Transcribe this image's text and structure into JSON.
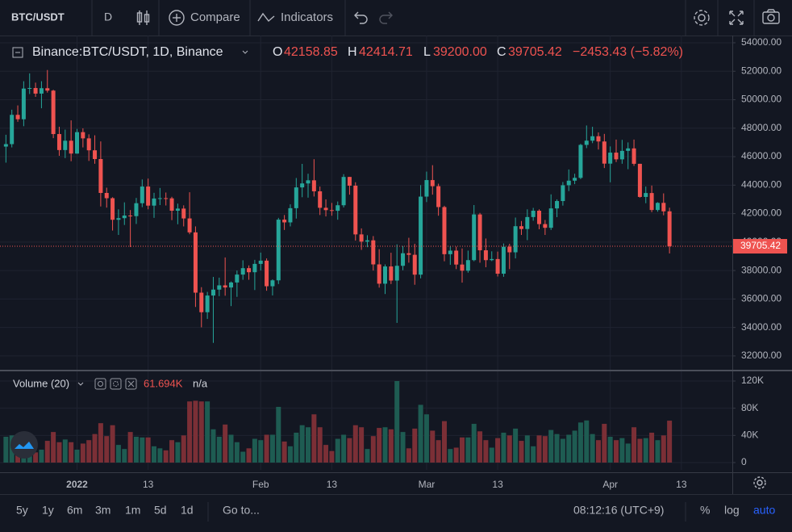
{
  "toolbar": {
    "symbol": "BTC/USDT",
    "interval": "D",
    "compare": "Compare",
    "indicators": "Indicators"
  },
  "chart_data": {
    "type": "candlestick",
    "title": "Binance:BTC/USDT, 1D, Binance",
    "ohlc_letters": {
      "open": "O",
      "high": "H",
      "low": "L",
      "close": "C"
    },
    "ohlc_labels": {
      "open": "42158.85",
      "high": "42414.71",
      "low": "39200.00",
      "close": "39705.42"
    },
    "change": "−2453.43 (−5.82%)",
    "up_color": "#26a69a",
    "down_color": "#ef5350",
    "grid": true,
    "last_price_line": true,
    "open": [
      46707,
      46880,
      48937,
      48628,
      50784,
      50823,
      50429,
      50809,
      50640,
      47588,
      46464,
      47120,
      46216,
      47722,
      47286,
      46446,
      45833,
      43451,
      43082,
      41566,
      41679,
      41864,
      41822,
      42729,
      43902,
      42560,
      43059,
      43084,
      43071,
      42201,
      42352,
      41660,
      40680,
      36445,
      35071,
      36244,
      36660,
      36958,
      36809,
      37160,
      37716,
      38166,
      37881,
      38466,
      38694,
      36896,
      37311,
      41574,
      41382,
      42380,
      43840,
      44118,
      44338,
      43565,
      42407,
      42244,
      42197,
      42586,
      44575,
      43961,
      40538,
      40030,
      40122,
      38431,
      37075,
      38286,
      37296,
      38332,
      39214,
      39105,
      37710,
      43193,
      44354,
      43925,
      42458,
      39148,
      39398,
      38420,
      37988,
      38730,
      41941,
      39422,
      38730,
      38807,
      37777,
      39671,
      39280,
      41114,
      40917,
      41757,
      42201,
      41262,
      41002,
      42364,
      42882,
      43991,
      44313,
      44511,
      46827,
      47122,
      47434,
      47067,
      45510,
      46283,
      45811,
      46407,
      46580,
      45497,
      43170,
      43444,
      42252,
      42753,
      42158.85
    ],
    "high": [
      47539,
      49300,
      49600,
      51300,
      51850,
      51200,
      51300,
      52088,
      50700,
      48100,
      47900,
      48550,
      47950,
      47990,
      47570,
      47500,
      47070,
      43820,
      43150,
      42300,
      42790,
      42250,
      43100,
      44400,
      44460,
      43460,
      43800,
      43480,
      43180,
      42700,
      42580,
      43500,
      41100,
      36830,
      36500,
      37550,
      37500,
      38919,
      37230,
      38000,
      38720,
      38360,
      38750,
      39260,
      38850,
      37380,
      41700,
      41900,
      42650,
      44500,
      45492,
      44800,
      45821,
      43900,
      43000,
      42750,
      42850,
      44770,
      44580,
      44200,
      40960,
      40480,
      40420,
      39500,
      38430,
      39250,
      39840,
      39720,
      40300,
      39880,
      44000,
      44950,
      45400,
      44100,
      42550,
      39700,
      39680,
      39550,
      39400,
      42600,
      42050,
      40250,
      39350,
      39330,
      39900,
      39880,
      41720,
      41480,
      42300,
      42400,
      42300,
      41550,
      43350,
      43000,
      44220,
      45100,
      44800,
      46900,
      48190,
      48100,
      47700,
      47600,
      46720,
      47200,
      47180,
      47000,
      47200,
      45500,
      43900,
      43970,
      42800,
      43420,
      42414.71
    ],
    "low": [
      45579,
      46650,
      48450,
      48140,
      50400,
      50200,
      49400,
      50500,
      47300,
      46060,
      45900,
      45680,
      46200,
      46650,
      45700,
      45500,
      42500,
      42420,
      40810,
      40500,
      41200,
      39650,
      41270,
      42450,
      42300,
      41700,
      42600,
      42570,
      41540,
      41250,
      41100,
      40550,
      35440,
      34010,
      34600,
      32917,
      36200,
      36230,
      35500,
      36150,
      37350,
      37350,
      36630,
      38000,
      36580,
      36250,
      37050,
      40850,
      41100,
      41650,
      43150,
      43120,
      43200,
      41900,
      41800,
      41850,
      41570,
      42430,
      43330,
      40100,
      39450,
      39640,
      38000,
      36800,
      36350,
      37050,
      34322,
      38020,
      38550,
      37000,
      37450,
      42810,
      43330,
      41850,
      38650,
      38400,
      38100,
      37150,
      37850,
      38650,
      38550,
      38230,
      38660,
      37580,
      37560,
      38100,
      38850,
      40500,
      40130,
      41500,
      40900,
      40500,
      40850,
      41750,
      42560,
      43580,
      44070,
      44420,
      46600,
      46950,
      46500,
      45200,
      44200,
      45620,
      45500,
      45120,
      45350,
      43120,
      42730,
      42100,
      42130,
      41880,
      39200
    ],
    "close": [
      46880,
      48937,
      48628,
      50784,
      50823,
      50429,
      50809,
      50640,
      47588,
      46464,
      47120,
      46216,
      47722,
      47286,
      46446,
      45833,
      43451,
      43082,
      41566,
      41679,
      41864,
      41822,
      42729,
      43902,
      42560,
      43059,
      43084,
      43071,
      42201,
      42352,
      41660,
      40680,
      36445,
      35071,
      36244,
      36660,
      36958,
      36809,
      37160,
      37716,
      38166,
      37881,
      38466,
      38694,
      36896,
      37311,
      41574,
      41382,
      42380,
      43840,
      44118,
      44338,
      43565,
      42407,
      42244,
      42197,
      42586,
      44575,
      43961,
      40538,
      40030,
      40122,
      38431,
      37075,
      38286,
      37296,
      38332,
      39214,
      39105,
      37710,
      43193,
      44354,
      43925,
      42458,
      39148,
      39398,
      38420,
      37988,
      38730,
      41941,
      39422,
      38730,
      38807,
      37777,
      39671,
      39280,
      41114,
      40917,
      41757,
      42201,
      41262,
      41002,
      42364,
      42882,
      43991,
      44313,
      44511,
      46827,
      47122,
      47434,
      47067,
      45510,
      46283,
      45811,
      46407,
      46580,
      45497,
      43170,
      43444,
      42252,
      42753,
      42158.85,
      39705.42
    ],
    "xlim": [
      -1,
      122.6
    ],
    "xticks": [
      {
        "value": 12,
        "label": "2022"
      },
      {
        "value": 24,
        "label": "13"
      },
      {
        "value": 43,
        "label": "Feb"
      },
      {
        "value": 55,
        "label": "13"
      },
      {
        "value": 71,
        "label": "Mar"
      },
      {
        "value": 83,
        "label": "13"
      },
      {
        "value": 102,
        "label": "Apr"
      },
      {
        "value": 114,
        "label": "13"
      }
    ],
    "ylim": [
      31030,
      54510
    ],
    "yticks": [
      {
        "value": 32000,
        "label": "32000.00"
      },
      {
        "value": 34000,
        "label": "34000.00"
      },
      {
        "value": 36000,
        "label": "36000.00"
      },
      {
        "value": 38000,
        "label": "38000.00"
      },
      {
        "value": 40000,
        "label": "40000.00"
      },
      {
        "value": 42000,
        "label": "42000.00"
      },
      {
        "value": 44000,
        "label": "44000.00"
      },
      {
        "value": 46000,
        "label": "46000.00"
      },
      {
        "value": 48000,
        "label": "48000.00"
      },
      {
        "value": 50000,
        "label": "50000.00"
      },
      {
        "value": 52000,
        "label": "52000.00"
      },
      {
        "value": 54000,
        "label": "54000.00"
      }
    ],
    "volume": {
      "name": "Volume (20)",
      "extra": "n/a",
      "up_color": "#1e5c52",
      "down_color": "#7b2f36",
      "values": [
        38000,
        40000,
        32000,
        41000,
        25000,
        15000,
        19000,
        32000,
        45000,
        30000,
        34000,
        30000,
        19000,
        28000,
        33000,
        42000,
        58000,
        39000,
        55000,
        26000,
        20000,
        45000,
        38000,
        37000,
        37000,
        24000,
        21000,
        18000,
        33000,
        30000,
        40000,
        90000,
        91000,
        90000,
        90000,
        49000,
        38000,
        56000,
        41000,
        30000,
        16000,
        21000,
        35000,
        33000,
        41000,
        41000,
        82000,
        31000,
        24000,
        44000,
        55000,
        52000,
        71000,
        52000,
        26000,
        17000,
        35000,
        41000,
        36000,
        55000,
        52000,
        20000,
        39000,
        51000,
        52000,
        49000,
        120000,
        45000,
        21000,
        50000,
        85000,
        71000,
        47000,
        33000,
        61000,
        20000,
        22000,
        37000,
        37000,
        57000,
        46000,
        33000,
        22000,
        36000,
        44000,
        40000,
        50000,
        32000,
        40000,
        24000,
        40000,
        39000,
        48000,
        42000,
        35000,
        41000,
        47000,
        59000,
        62000,
        42000,
        33000,
        57000,
        38000,
        33000,
        36000,
        28000,
        52000,
        35000,
        36000,
        44000,
        33000,
        40000,
        61694
      ],
      "value_labels": [
        null,
        null,
        null,
        null,
        null,
        null,
        null,
        null,
        null,
        null,
        null,
        null,
        null,
        null,
        null,
        null,
        null,
        null,
        null,
        null,
        null,
        null,
        null,
        null,
        null,
        null,
        null,
        null,
        null,
        null,
        null,
        null,
        null,
        null,
        null,
        null,
        null,
        null,
        null,
        null,
        null,
        null,
        null,
        null,
        null,
        null,
        null,
        null,
        null,
        null,
        null,
        null,
        null,
        null,
        null,
        null,
        null,
        null,
        null,
        null,
        null,
        null,
        null,
        null,
        null,
        null,
        null,
        null,
        null,
        null,
        null,
        null,
        null,
        null,
        null,
        null,
        null,
        null,
        null,
        null,
        null,
        null,
        null,
        null,
        null,
        null,
        null,
        null,
        null,
        null,
        null,
        null,
        null,
        null,
        null,
        null,
        null,
        null,
        null,
        null,
        null,
        null,
        null,
        null,
        null,
        null,
        null,
        null,
        null,
        null,
        null,
        null,
        "61.694K"
      ],
      "ylim": [
        -10693,
        134257
      ],
      "yticks": [
        0,
        {
          "value": 40000,
          "label": "40K"
        },
        {
          "value": 80000,
          "label": "80K"
        },
        {
          "value": 120000,
          "label": "120K"
        }
      ]
    }
  },
  "bottom_bar": {
    "ranges": [
      "5y",
      "1y",
      "6m",
      "3m",
      "1m",
      "5d",
      "1d"
    ],
    "goto": "Go to...",
    "time": "08:12:16 (UTC+9)",
    "percent": "%",
    "log": "log",
    "auto": "auto"
  }
}
